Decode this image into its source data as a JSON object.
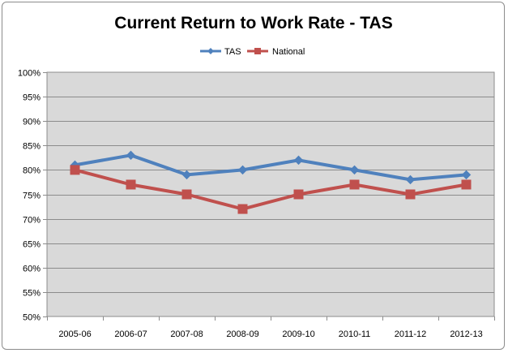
{
  "chart_data": {
    "type": "line",
    "title": "Current Return to Work Rate - TAS",
    "categories": [
      "2005-06",
      "2006-07",
      "2007-08",
      "2008-09",
      "2009-10",
      "2010-11",
      "2011-12",
      "2012-13"
    ],
    "series": [
      {
        "name": "TAS",
        "values": [
          81,
          83,
          79,
          80,
          82,
          80,
          78,
          79
        ],
        "color": "#4f81bd",
        "marker": "diamond"
      },
      {
        "name": "National",
        "values": [
          80,
          77,
          75,
          72,
          75,
          77,
          75,
          77
        ],
        "color": "#c0504d",
        "marker": "square"
      }
    ],
    "ylim": [
      50,
      100
    ],
    "yticks": [
      "50%",
      "55%",
      "60%",
      "65%",
      "70%",
      "75%",
      "80%",
      "85%",
      "90%",
      "95%",
      "100%"
    ],
    "ytick_values": [
      50,
      55,
      60,
      65,
      70,
      75,
      80,
      85,
      90,
      95,
      100
    ],
    "grid": true,
    "legend_position": "top",
    "plot_background": "#d9d9d9"
  }
}
